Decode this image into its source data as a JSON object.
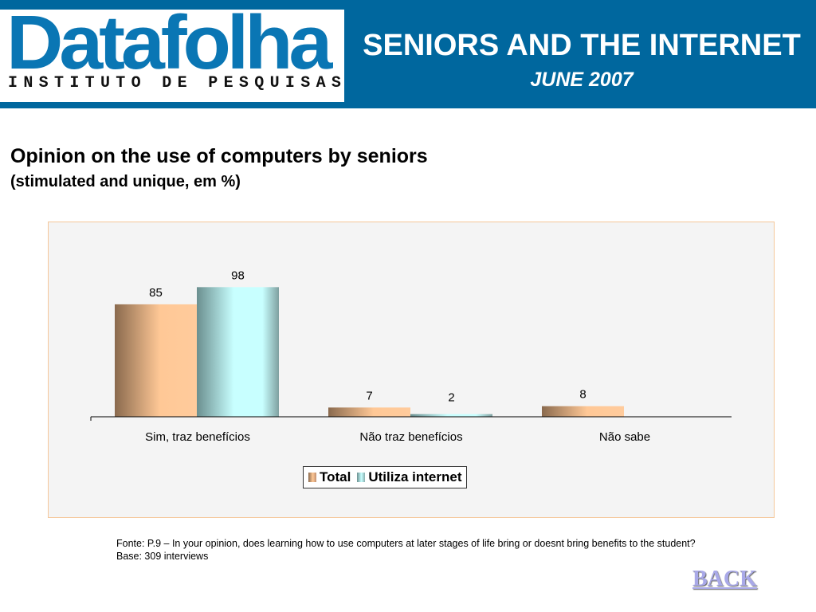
{
  "header": {
    "logo_text": "Datafolha",
    "logo_subtext": "INSTITUTO DE PESQUISAS",
    "title": "SENIORS AND THE INTERNET",
    "subtitle": "JUNE 2007"
  },
  "heading": "Opinion on the use of computers by seniors",
  "subheading": "(stimulated and unique, em %)",
  "chart_data": {
    "type": "bar",
    "categories": [
      "Sim, traz benefícios",
      "Não traz benefícios",
      "Não sabe"
    ],
    "series": [
      {
        "name": "Total",
        "values": [
          85,
          7,
          8
        ],
        "color": "#ffc896"
      },
      {
        "name": "Utiliza internet",
        "values": [
          98,
          2,
          null
        ],
        "color": "#c8ffff"
      }
    ],
    "ylim": [
      0,
      100
    ],
    "grid": false,
    "legend": "bottom"
  },
  "footnote": {
    "line1": "Fonte: P.9 – In your opinion, does learning how to use computers at later stages of life bring or doesnt bring benefits to the student?",
    "line2": "Base: 309 interviews"
  },
  "back_label": "BACK"
}
